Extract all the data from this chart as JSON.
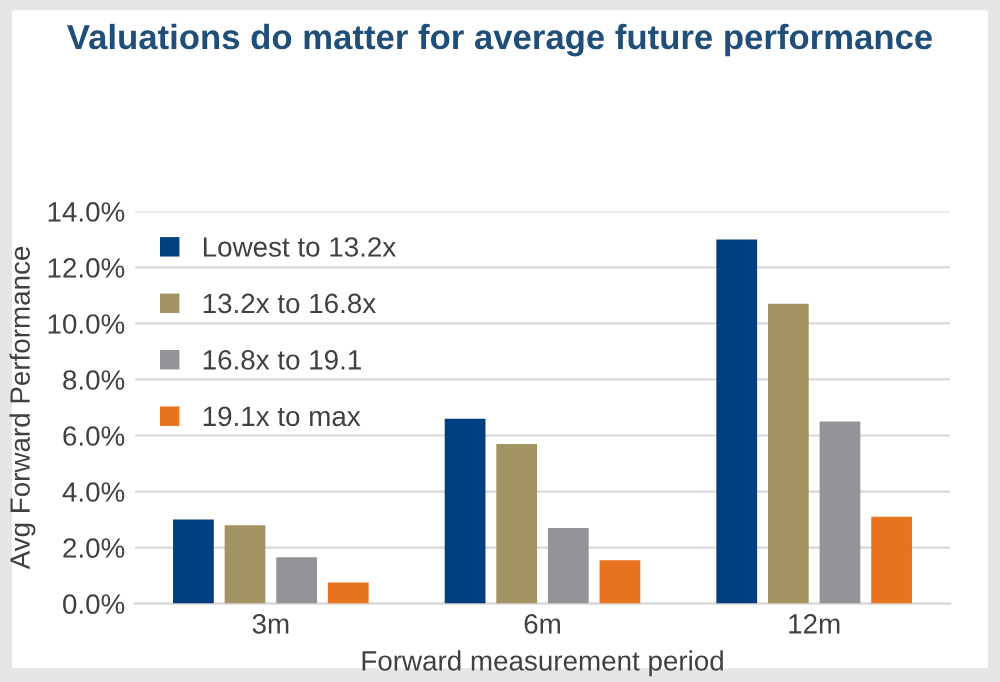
{
  "chart_data": {
    "type": "bar",
    "title": "Valuations do matter for average future performance",
    "xlabel": "Forward measurement period",
    "ylabel": "Avg Forward Performance",
    "categories": [
      "3m",
      "6m",
      "12m"
    ],
    "series": [
      {
        "name": "Lowest to 13.2x",
        "color": "#003f7d",
        "values": [
          3.0,
          6.6,
          13.0
        ]
      },
      {
        "name": "13.2x to 16.8x",
        "color": "#a39463",
        "values": [
          2.8,
          5.7,
          10.7
        ]
      },
      {
        "name": "16.8x to 19.1",
        "color": "#929497",
        "values": [
          1.65,
          2.7,
          6.5
        ]
      },
      {
        "name": "19.1x to max",
        "color": "#e8731e",
        "values": [
          0.75,
          1.55,
          3.1
        ]
      }
    ],
    "ylim": [
      0,
      14
    ],
    "yticks": [
      {
        "value": 0,
        "label": "0.0%"
      },
      {
        "value": 2,
        "label": "2.0%"
      },
      {
        "value": 4,
        "label": "4.0%"
      },
      {
        "value": 6,
        "label": "6.0%"
      },
      {
        "value": 8,
        "label": "8.0%"
      },
      {
        "value": 10,
        "label": "10.0%"
      },
      {
        "value": 12,
        "label": "12.0%"
      },
      {
        "value": 14,
        "label": "14.0%"
      }
    ],
    "grid": "y",
    "legend": "top left"
  }
}
